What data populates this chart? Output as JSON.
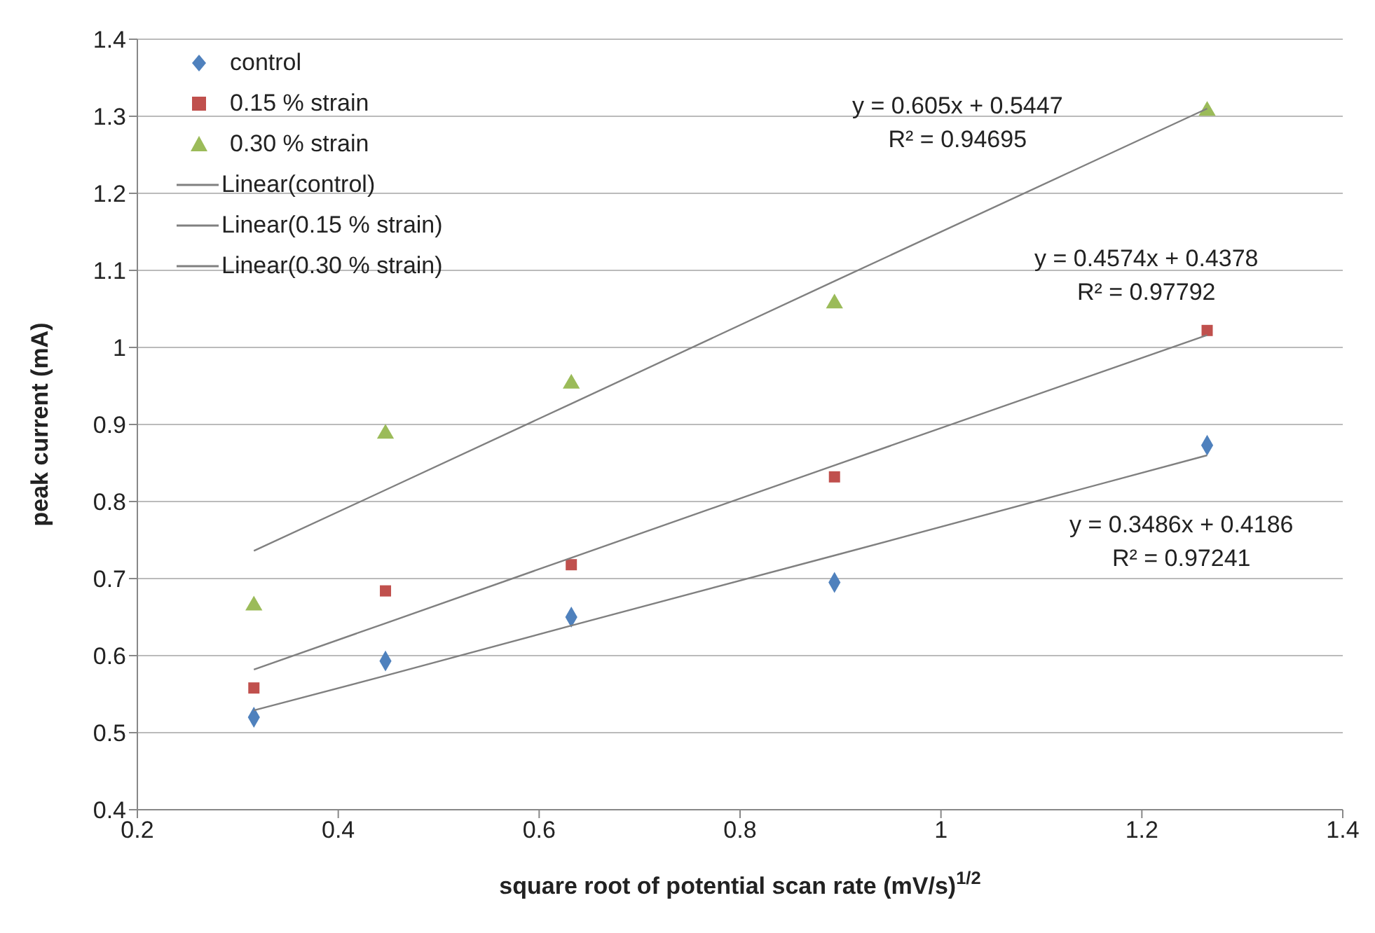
{
  "chart_data": {
    "type": "scatter",
    "xlabel": "square root of potential scan rate (mV/s)$^{1/2}$",
    "ylabel": "peak current (mA)",
    "xlim": [
      0.2,
      1.4
    ],
    "xticks": [
      0.2,
      0.4,
      0.6,
      0.8,
      1,
      1.2,
      1.4
    ],
    "ylim": [
      0.4,
      1.4
    ],
    "yticks": [
      0.4,
      0.5,
      0.6,
      0.7,
      0.8,
      0.9,
      1,
      1.1,
      1.2,
      1.3,
      1.4
    ],
    "grid": "y",
    "legend": "top left",
    "x": [
      0.316,
      0.447,
      0.632,
      0.894,
      1.265
    ],
    "series": [
      {
        "name": "control",
        "color": "#4f81bd",
        "marker": "diamond",
        "values": [
          0.52,
          0.593,
          0.65,
          0.695,
          0.873
        ]
      },
      {
        "name": "0.15 % strain",
        "color": "#c0504d",
        "marker": "square",
        "values": [
          0.558,
          0.684,
          0.718,
          0.832,
          1.022
        ]
      },
      {
        "name": "0.30 % strain",
        "color": "#9bbb59",
        "marker": "triangle",
        "values": [
          0.665,
          0.888,
          0.953,
          1.057,
          1.307
        ]
      },
      {
        "name": "Linear(control)",
        "type": "line",
        "color": "#808080",
        "marker": "none",
        "line_style": "solid",
        "values": [
          0.529,
          0.574,
          0.639,
          0.73,
          0.86
        ]
      },
      {
        "name": "Linear(0.15 % strain)",
        "type": "line",
        "color": "#808080",
        "marker": "none",
        "line_style": "solid",
        "values": [
          0.582,
          0.642,
          0.727,
          0.847,
          1.016
        ]
      },
      {
        "name": "Linear(0.30 % strain)",
        "type": "line",
        "color": "#808080",
        "marker": "none",
        "line_style": "solid",
        "values": [
          0.736,
          0.815,
          0.927,
          1.086,
          1.31
        ]
      }
    ],
    "annotations": [
      "y = 0.605x + 0.5447\nR² = 0.94695",
      "y = 0.4574x + 0.4378\nR² = 0.97792",
      "y = 0.3486x + 0.4186\nR² = 0.97241"
    ]
  }
}
